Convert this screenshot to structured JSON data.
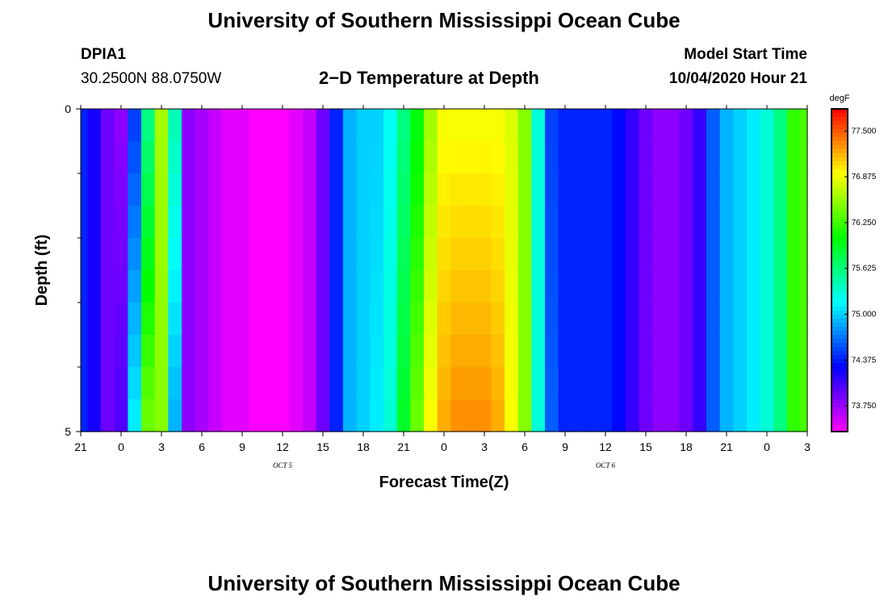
{
  "page_title": "University of Southern Mississippi Ocean Cube",
  "footer_title": "University of Southern Mississippi Ocean Cube",
  "station_id": "DPIA1",
  "station_coords": "30.2500N 88.0750W",
  "plot_title": "2−D Temperature at Depth",
  "model_start_label": "Model Start Time",
  "model_start_value": "10/04/2020 Hour 21",
  "chart_data": {
    "type": "heatmap",
    "title": "2−D Temperature at Depth",
    "xlabel": "Forecast Time(Z)",
    "ylabel": "Depth (ft)",
    "colorbar_label": "degF",
    "x_tick_labels": [
      "21",
      "0",
      "3",
      "6",
      "9",
      "12",
      "15",
      "18",
      "21",
      "0",
      "3",
      "6",
      "9",
      "12",
      "15",
      "18",
      "21",
      "0",
      "3"
    ],
    "x_tick_hours": [
      0,
      3,
      6,
      9,
      12,
      15,
      18,
      21,
      24,
      27,
      30,
      33,
      36,
      39,
      42,
      45,
      48,
      51,
      54
    ],
    "date_labels": [
      {
        "text": "OCT 5",
        "hour": 15
      },
      {
        "text": "OCT 6",
        "hour": 39
      }
    ],
    "y_tick_labels": [
      "0",
      "5"
    ],
    "ylim": [
      0,
      5
    ],
    "y_minor_ticks": [
      1,
      2,
      3,
      4
    ],
    "colorbar_ticks": [
      "77.500",
      "76.875",
      "76.250",
      "75.625",
      "75.000",
      "74.375",
      "73.750"
    ],
    "color_range": [
      73.4,
      77.8
    ],
    "x_hours": [
      0,
      1,
      2,
      3,
      4,
      5,
      6,
      7,
      8,
      9,
      10,
      11,
      12,
      13,
      14,
      15,
      16,
      17,
      18,
      19,
      20,
      21,
      22,
      23,
      24,
      25,
      26,
      27,
      28,
      29,
      30,
      31,
      32,
      33,
      34,
      35,
      36,
      37,
      38,
      39,
      40,
      41,
      42,
      43,
      44,
      45,
      46,
      47,
      48,
      49,
      50,
      51,
      52,
      53,
      54
    ],
    "temperature_surface_degF": [
      74.4,
      74.2,
      73.9,
      73.8,
      74.5,
      75.6,
      76.6,
      75.4,
      73.8,
      73.7,
      73.6,
      73.5,
      73.5,
      73.4,
      73.4,
      73.4,
      73.5,
      73.6,
      73.9,
      74.4,
      74.9,
      75.0,
      75.0,
      75.2,
      75.6,
      76.0,
      76.6,
      76.9,
      76.9,
      76.9,
      76.9,
      76.9,
      76.8,
      76.5,
      75.3,
      74.5,
      74.4,
      74.4,
      74.4,
      74.4,
      74.3,
      74.1,
      73.9,
      73.8,
      73.8,
      73.9,
      74.1,
      74.6,
      74.9,
      75.0,
      75.1,
      75.3,
      75.6,
      76.2,
      76.3
    ],
    "temperature_bottom_degF": [
      74.4,
      74.2,
      73.9,
      74.0,
      75.1,
      76.4,
      76.5,
      74.9,
      73.8,
      73.7,
      73.6,
      73.5,
      73.5,
      73.4,
      73.4,
      73.4,
      73.5,
      73.6,
      73.9,
      74.4,
      74.9,
      75.0,
      75.1,
      75.3,
      75.9,
      76.4,
      76.9,
      77.2,
      77.3,
      77.3,
      77.3,
      77.2,
      76.9,
      76.5,
      75.3,
      74.6,
      74.4,
      74.4,
      74.4,
      74.4,
      74.3,
      74.1,
      73.9,
      73.8,
      73.8,
      73.9,
      74.1,
      74.6,
      74.9,
      75.0,
      75.1,
      75.3,
      75.6,
      76.2,
      76.3
    ],
    "grid": false
  }
}
